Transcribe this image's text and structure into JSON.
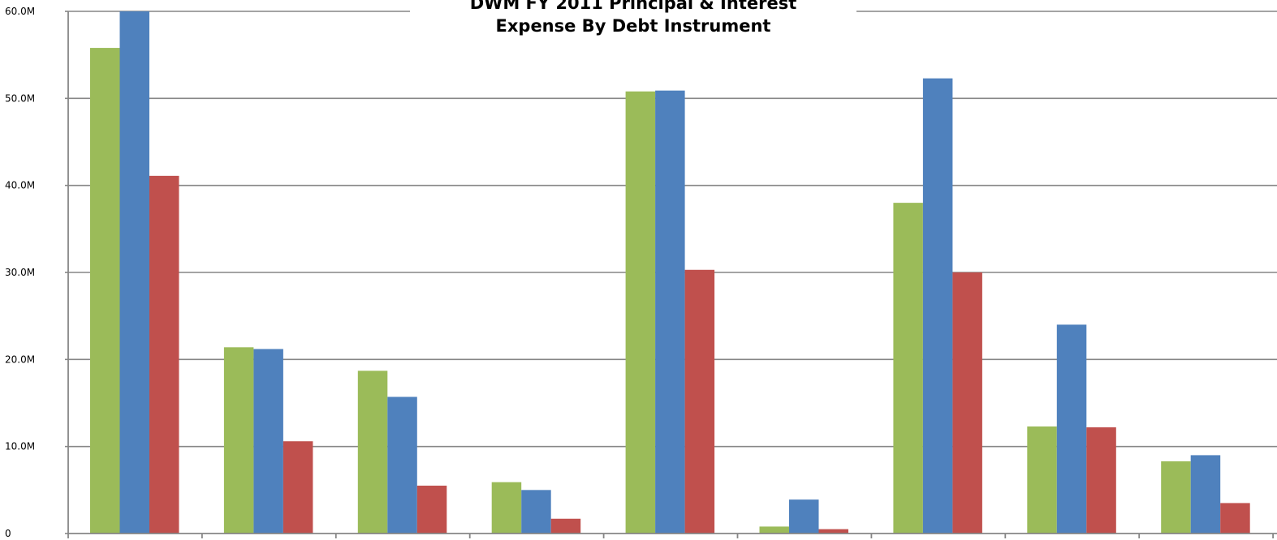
{
  "chart_data": {
    "type": "bar",
    "title_lines": [
      "DWM FY 2011 Principal & Interest",
      "Expense By Debt Instrument"
    ],
    "xlabel": "",
    "ylabel": "",
    "categories": [
      "",
      "",
      "",
      "",
      "",
      "",
      "",
      "",
      ""
    ],
    "series": [
      {
        "color": "#9BBB59",
        "values": [
          55.8,
          21.4,
          18.7,
          5.9,
          50.8,
          0.8,
          38.0,
          12.3,
          8.3
        ]
      },
      {
        "color": "#4F81BD",
        "values": [
          60.0,
          21.2,
          15.7,
          5.0,
          50.9,
          3.9,
          52.3,
          24.0,
          9.0
        ]
      },
      {
        "color": "#C0504D",
        "values": [
          41.1,
          10.6,
          5.5,
          1.7,
          30.3,
          0.5,
          30.0,
          12.2,
          3.5
        ]
      }
    ],
    "ylim": [
      0,
      60
    ],
    "yticks": [
      {
        "value": 0,
        "label": "0"
      },
      {
        "value": 10,
        "label": "10.0M"
      },
      {
        "value": 20,
        "label": "20.0M"
      },
      {
        "value": 30,
        "label": "30.0M"
      },
      {
        "value": 40,
        "label": "40.0M"
      },
      {
        "value": 50,
        "label": "50.0M"
      },
      {
        "value": 60,
        "label": "60.0M"
      }
    ],
    "grid": true,
    "gridline_color": "#868686",
    "axis_color": "#868686"
  }
}
